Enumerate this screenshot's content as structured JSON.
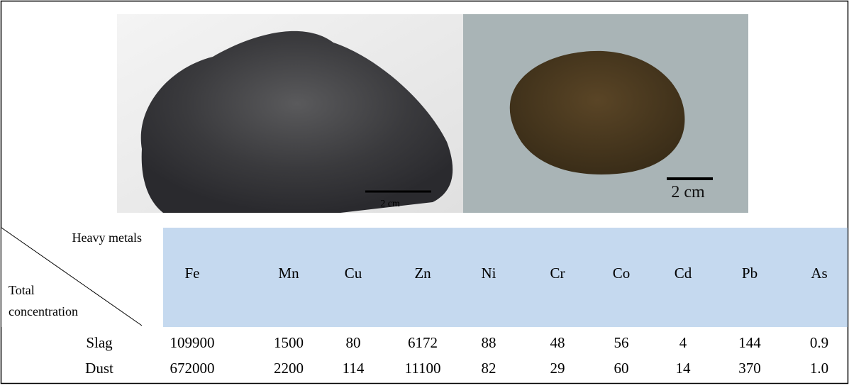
{
  "images": [
    {
      "scale_label": "2 cm"
    },
    {
      "scale_label": "2 cm"
    }
  ],
  "table": {
    "corner": {
      "top": "Heavy metals",
      "bottom_line1": "Total",
      "bottom_line2": "concentration"
    },
    "columns": [
      "Fe",
      "Mn",
      "Cu",
      "Zn",
      "Ni",
      "Cr",
      "Co",
      "Cd",
      "Pb",
      "As"
    ],
    "rows": [
      {
        "label": "Slag",
        "values": [
          "109900",
          "1500",
          "80",
          "6172",
          "88",
          "48",
          "56",
          "4",
          "144",
          "0.9"
        ]
      },
      {
        "label": "Dust",
        "values": [
          "672000",
          "2200",
          "114",
          "11100",
          "82",
          "29",
          "60",
          "14",
          "370",
          "1.0"
        ]
      }
    ]
  }
}
